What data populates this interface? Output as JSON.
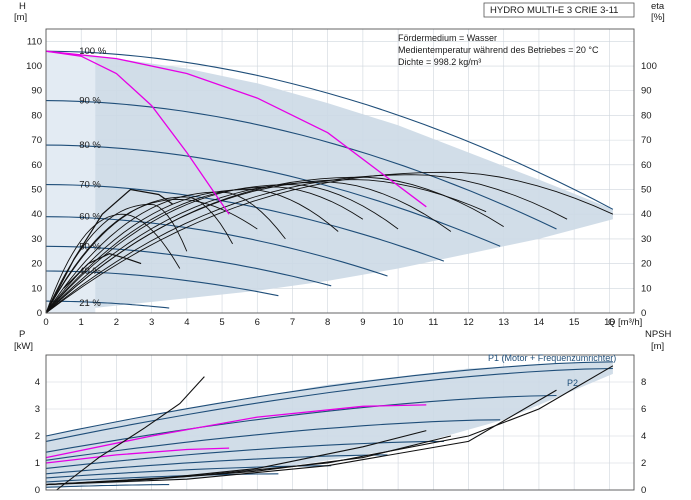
{
  "title_box": "HYDRO MULTI-E 3 CRIE 3-11",
  "medium_notes": [
    "Fördermedium = Wasser",
    "Medientemperatur während des Betriebes = 20 °C",
    "Dichte = 998.2 kg/m³"
  ],
  "colors": {
    "envelope": "#ccd9e5",
    "envelope_light": "#e3ebf3",
    "curve_dark": "#1f4e79",
    "curve_black": "#111111",
    "curve_magenta": "#e600e6",
    "grid": "#cfd6dd",
    "frame": "#555555"
  },
  "chart_data": [
    {
      "type": "line",
      "name": "top",
      "ylabel_left_name": "H",
      "ylabel_left_unit": "[m]",
      "ylabel_right_name": "eta",
      "ylabel_right_unit": "[%]",
      "xlabel": "Q [m³/h]",
      "xlim": [
        0,
        16.7
      ],
      "ylim": [
        0,
        115
      ],
      "yright_lim": [
        0,
        115
      ],
      "x_ticks": [
        "0",
        "1",
        "2",
        "3",
        "4",
        "5",
        "6",
        "7",
        "8",
        "9",
        "10",
        "11",
        "12",
        "13",
        "14",
        "15",
        "16"
      ],
      "y_ticks_left": [
        "0",
        "10",
        "20",
        "30",
        "40",
        "50",
        "60",
        "70",
        "80",
        "90",
        "100",
        "110"
      ],
      "y_ticks_right": [
        "0",
        "10",
        "20",
        "30",
        "40",
        "50",
        "60",
        "70",
        "80",
        "90",
        "100"
      ],
      "speed_labels": [
        {
          "text": "100 %",
          "x": 1.0,
          "y": 106
        },
        {
          "text": "90 %",
          "x": 1.0,
          "y": 86
        },
        {
          "text": "80 %",
          "x": 1.0,
          "y": 68
        },
        {
          "text": "70 %",
          "x": 1.0,
          "y": 52
        },
        {
          "text": "60 %",
          "x": 1.0,
          "y": 39
        },
        {
          "text": "50 %",
          "x": 1.0,
          "y": 27
        },
        {
          "text": "40 %",
          "x": 1.0,
          "y": 17
        },
        {
          "text": "21 %",
          "x": 1.0,
          "y": 4
        }
      ],
      "envelope": {
        "upper": [
          [
            0,
            106
          ],
          [
            2,
            103
          ],
          [
            4,
            99
          ],
          [
            6,
            93
          ],
          [
            8,
            85
          ],
          [
            10,
            76
          ],
          [
            12,
            65
          ],
          [
            14,
            54
          ],
          [
            16.1,
            42
          ]
        ],
        "lower": [
          [
            16.1,
            38
          ],
          [
            14,
            30
          ],
          [
            12,
            24
          ],
          [
            10,
            18
          ],
          [
            8,
            13
          ],
          [
            6,
            9
          ],
          [
            4,
            6
          ],
          [
            2,
            3
          ],
          [
            0,
            0
          ]
        ]
      },
      "head_curves": [
        {
          "speed": 100,
          "H0": 106,
          "Qmax": 16.1,
          "Hend": 42
        },
        {
          "speed": 90,
          "H0": 86,
          "Qmax": 14.5,
          "Hend": 34
        },
        {
          "speed": 80,
          "H0": 68,
          "Qmax": 12.9,
          "Hend": 27
        },
        {
          "speed": 70,
          "H0": 52,
          "Qmax": 11.3,
          "Hend": 21
        },
        {
          "speed": 60,
          "H0": 39,
          "Qmax": 9.7,
          "Hend": 15
        },
        {
          "speed": 50,
          "H0": 27,
          "Qmax": 8.1,
          "Hend": 11
        },
        {
          "speed": 40,
          "H0": 17,
          "Qmax": 6.6,
          "Hend": 7
        },
        {
          "speed": 21,
          "H0": 4.8,
          "Qmax": 3.5,
          "Hend": 2
        }
      ],
      "magenta_curves": [
        {
          "x": [
            0,
            1,
            2,
            3,
            4,
            5.2
          ],
          "y": [
            106,
            104,
            97,
            84,
            65,
            40
          ]
        },
        {
          "x": [
            0,
            2,
            4,
            6,
            8,
            10.8
          ],
          "y": [
            106,
            103,
            97,
            87,
            73,
            43
          ]
        }
      ],
      "eta_curves": [
        {
          "qmax": 16.1,
          "peak_q": 11.5,
          "peak": 57,
          "end": 40
        },
        {
          "qmax": 14.8,
          "peak_q": 10.5,
          "peak": 56,
          "end": 38
        },
        {
          "qmax": 13.0,
          "peak_q": 9.0,
          "peak": 55,
          "end": 35
        },
        {
          "qmax": 11.5,
          "peak_q": 8.0,
          "peak": 53,
          "end": 33
        },
        {
          "qmax": 10.0,
          "peak_q": 7.0,
          "peak": 52,
          "end": 34
        },
        {
          "qmax": 8.3,
          "peak_q": 5.8,
          "peak": 50,
          "end": 33
        },
        {
          "qmax": 6.8,
          "peak_q": 5.0,
          "peak": 49,
          "end": 30
        },
        {
          "qmax": 5.3,
          "peak_q": 4.0,
          "peak": 47,
          "end": 28
        },
        {
          "qmax": 4.0,
          "peak_q": 3.0,
          "peak": 44,
          "end": 25
        },
        {
          "qmax": 6.0,
          "peak_q": 3.8,
          "peak": 46,
          "end": 34
        },
        {
          "qmax": 9.0,
          "peak_q": 6.5,
          "peak": 51,
          "end": 38
        },
        {
          "qmax": 12.5,
          "peak_q": 8.8,
          "peak": 54,
          "end": 41
        },
        {
          "qmax": 3.8,
          "peak_q": 2.2,
          "peak": 40,
          "end": 18
        }
      ],
      "eta_low": [
        {
          "x": [
            0,
            0.8,
            1.6,
            2.4,
            3.2,
            3.6
          ],
          "y": [
            0,
            22,
            40,
            50,
            48,
            44
          ]
        },
        {
          "x": [
            0.5,
            1.2,
            1.8,
            2.3,
            2.7
          ],
          "y": [
            10,
            20,
            24,
            22,
            20
          ]
        }
      ]
    },
    {
      "type": "line",
      "name": "bottom",
      "ylabel_left_name": "P",
      "ylabel_left_unit": "[kW]",
      "ylabel_right_name": "NPSH",
      "ylabel_right_unit": "[m]",
      "xlim": [
        0,
        16.7
      ],
      "ylim": [
        0,
        5.0
      ],
      "yright_lim": [
        0,
        10
      ],
      "y_ticks_left": [
        "0",
        "1",
        "2",
        "3",
        "4"
      ],
      "y_ticks_right": [
        "0",
        "2",
        "4",
        "6",
        "8"
      ],
      "series_labels": [
        "P1 (Motor + Frequenzumrichter)",
        "P2"
      ],
      "envelope": {
        "upper": [
          [
            0,
            2.0
          ],
          [
            4,
            3.0
          ],
          [
            8,
            3.9
          ],
          [
            12,
            4.5
          ],
          [
            16.1,
            4.75
          ]
        ],
        "lower": [
          [
            16.1,
            4.3
          ],
          [
            13,
            2.6
          ],
          [
            10,
            1.5
          ],
          [
            7,
            0.9
          ],
          [
            4,
            0.4
          ],
          [
            0,
            0.1
          ]
        ]
      },
      "p1_curves": [
        {
          "x0": 0,
          "y0": 2.0,
          "x1": 16.1,
          "y1": 4.75
        },
        {
          "x0": 0,
          "y0": 1.8,
          "x1": 16.1,
          "y1": 4.5
        },
        {
          "x0": 0,
          "y0": 1.4,
          "x1": 14.5,
          "y1": 3.5
        },
        {
          "x0": 0,
          "y0": 1.1,
          "x1": 12.9,
          "y1": 2.6
        },
        {
          "x0": 0,
          "y0": 0.8,
          "x1": 11.3,
          "y1": 1.8
        },
        {
          "x0": 0,
          "y0": 0.6,
          "x1": 9.7,
          "y1": 1.3
        },
        {
          "x0": 0,
          "y0": 0.45,
          "x1": 8.1,
          "y1": 0.9
        },
        {
          "x0": 0,
          "y0": 0.3,
          "x1": 6.6,
          "y1": 0.6
        },
        {
          "x0": 0,
          "y0": 0.1,
          "x1": 3.5,
          "y1": 0.2
        }
      ],
      "p_magenta": [
        {
          "x": [
            0,
            3,
            6,
            9,
            10.8
          ],
          "y": [
            1.2,
            2.0,
            2.7,
            3.1,
            3.15
          ]
        },
        {
          "x": [
            0,
            2,
            4,
            5.2
          ],
          "y": [
            1.0,
            1.3,
            1.5,
            1.55
          ]
        }
      ],
      "npsh_curves": [
        {
          "x": [
            0,
            4,
            8,
            12,
            14,
            16.1
          ],
          "y": [
            0.2,
            0.5,
            1.0,
            2.0,
            3.0,
            4.6
          ]
        },
        {
          "x": [
            0,
            4,
            8,
            12,
            14.5
          ],
          "y": [
            0.2,
            0.4,
            0.9,
            1.8,
            3.7
          ]
        },
        {
          "x": [
            0,
            3,
            6,
            9,
            10.8
          ],
          "y": [
            0.2,
            0.4,
            0.8,
            1.6,
            2.2
          ]
        },
        {
          "x": [
            0.3,
            1.5,
            2.8,
            3.8,
            4.5
          ],
          "y": [
            0.0,
            1.2,
            2.3,
            3.2,
            4.2
          ]
        },
        {
          "x": [
            0,
            3,
            6,
            9,
            11.5
          ],
          "y": [
            0.2,
            0.4,
            0.7,
            1.2,
            2.0
          ]
        }
      ]
    }
  ]
}
